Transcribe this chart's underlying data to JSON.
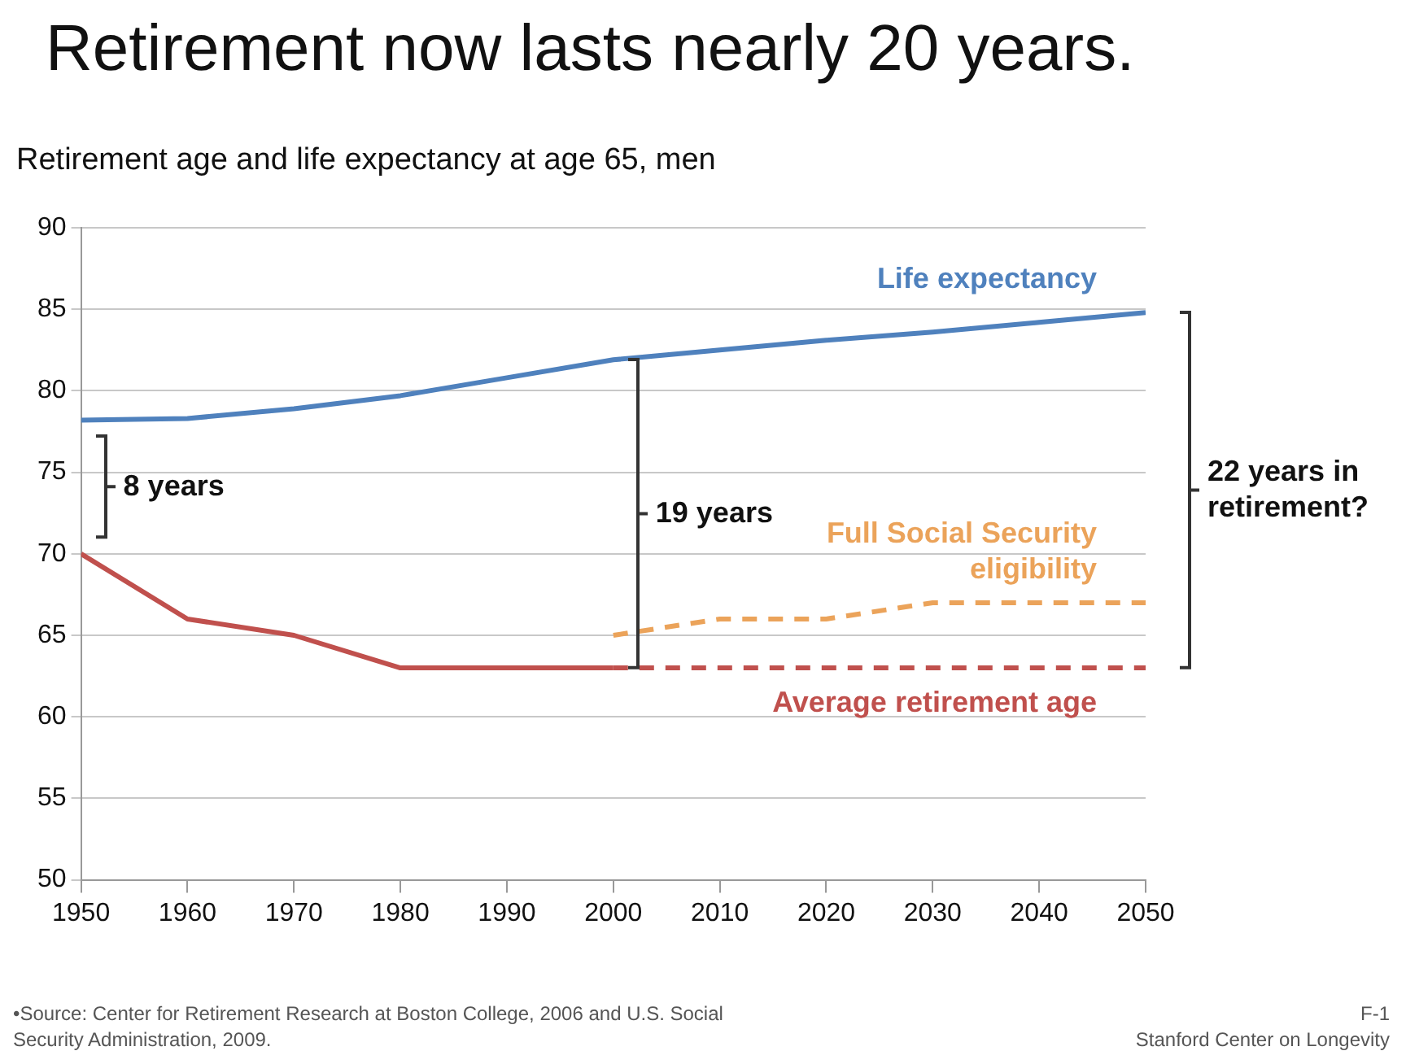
{
  "chart_data": {
    "type": "line",
    "title": "Retirement now lasts nearly 20 years.",
    "subtitle": "Retirement age and life expectancy at age 65, men",
    "x": [
      1950,
      1960,
      1970,
      1980,
      1990,
      2000,
      2010,
      2020,
      2030,
      2040,
      2050
    ],
    "series": [
      {
        "name": "Life expectancy",
        "color": "#4f81bd",
        "values": [
          78.2,
          78.3,
          78.9,
          79.7,
          80.8,
          81.9,
          82.5,
          83.1,
          83.6,
          84.2,
          84.8
        ],
        "line_style": "solid"
      },
      {
        "color": "#c0504d",
        "values": [
          70,
          66,
          65,
          63,
          63,
          63,
          null,
          null,
          null,
          null,
          null
        ],
        "line_style": "solid"
      },
      {
        "name": "Full Social Security eligibility",
        "color": "#eba35a",
        "values": [
          null,
          null,
          null,
          null,
          null,
          65,
          66,
          66,
          67,
          67,
          67
        ],
        "line_style": "dashed"
      },
      {
        "name": "Average retirement age",
        "color": "#c0504d",
        "values": [
          null,
          null,
          null,
          null,
          null,
          63,
          63,
          63,
          63,
          63,
          63
        ],
        "line_style": "dashed"
      }
    ],
    "xlim": [
      1950,
      2050
    ],
    "xticks": [
      1950,
      1960,
      1970,
      1980,
      1990,
      2000,
      2010,
      2020,
      2030,
      2040,
      2050
    ],
    "ylim": [
      50,
      90
    ],
    "yticks": [
      50,
      55,
      60,
      65,
      70,
      75,
      80,
      85,
      90
    ],
    "grid": "y",
    "legend": false,
    "marker": "none",
    "annotations": [
      "8 years",
      "19 years",
      "22 years in retirement?",
      "•Source: Center for Retirement Research at Boston College, 2006 and U.S. Social Security Administration, 2009.",
      "F-1",
      "Stanford Center on Longevity"
    ]
  }
}
